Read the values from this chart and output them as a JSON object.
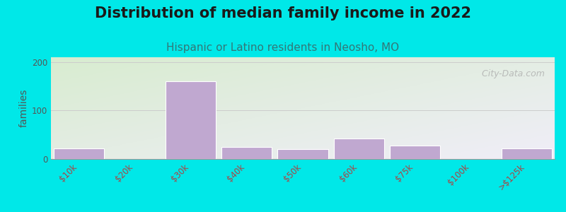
{
  "title": "Distribution of median family income in 2022",
  "subtitle": "Hispanic or Latino residents in Neosho, MO",
  "ylabel": "families",
  "categories": [
    "$10k",
    "$20k",
    "$30k",
    "$40k",
    "$50k",
    "$60k",
    "$75k",
    "$100k",
    ">$125k"
  ],
  "values": [
    22,
    0,
    160,
    25,
    20,
    42,
    28,
    0,
    22
  ],
  "bar_color": "#c0a8d0",
  "bar_edgecolor": "#ffffff",
  "background_outer": "#00e8e8",
  "background_inner_top_left": "#d8ecd0",
  "background_inner_bottom_right": "#f0eef8",
  "grid_color": "#cccccc",
  "title_fontsize": 15,
  "subtitle_fontsize": 11,
  "ylabel_fontsize": 10,
  "tick_fontsize": 8.5,
  "tick_color": "#aa4444",
  "yticks": [
    0,
    100,
    200
  ],
  "ylim": [
    0,
    210
  ],
  "watermark": "   City-Data.com",
  "watermark_fontsize": 9
}
